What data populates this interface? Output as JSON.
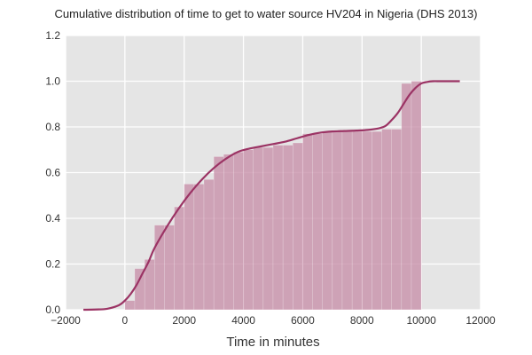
{
  "chart_data": {
    "type": "bar",
    "title": "Cumulative distribution of time to get to water source HV204 in Nigeria (DHS 2013)",
    "xlabel": "Time in minutes",
    "ylabel": "",
    "xlim": [
      -2000,
      12000
    ],
    "ylim": [
      0,
      1.2
    ],
    "xticks": [
      -2000,
      0,
      2000,
      4000,
      6000,
      8000,
      10000,
      12000
    ],
    "yticks": [
      0.0,
      0.2,
      0.4,
      0.6,
      0.8,
      1.0,
      1.2
    ],
    "xtick_labels": [
      "−2000",
      "0",
      "2000",
      "4000",
      "6000",
      "8000",
      "10000",
      "12000"
    ],
    "ytick_labels": [
      "0.0",
      "0.2",
      "0.4",
      "0.6",
      "0.8",
      "1.0",
      "1.2"
    ],
    "grid": true,
    "legend": "none",
    "series": [
      {
        "kind": "histogram",
        "color": "#c88fa9",
        "bin_edges": [
          0,
          333,
          667,
          1000,
          1333,
          1667,
          2000,
          2333,
          2667,
          3000,
          3333,
          3667,
          4000,
          4333,
          4667,
          5000,
          5333,
          5667,
          6000,
          6333,
          6667,
          7000,
          7333,
          7667,
          8000,
          8333,
          8667,
          9000,
          9333,
          9667,
          10000
        ],
        "values": [
          0.04,
          0.18,
          0.22,
          0.37,
          0.37,
          0.45,
          0.55,
          0.55,
          0.57,
          0.67,
          0.68,
          0.69,
          0.7,
          0.71,
          0.71,
          0.72,
          0.72,
          0.73,
          0.77,
          0.77,
          0.78,
          0.78,
          0.78,
          0.78,
          0.78,
          0.78,
          0.79,
          0.79,
          0.99,
          1.0
        ]
      },
      {
        "kind": "kde-cumulative-line",
        "color": "#9b3364",
        "x": [
          -1400,
          -1000,
          -600,
          -200,
          0,
          200,
          400,
          600,
          800,
          1000,
          1400,
          1800,
          2200,
          2600,
          3000,
          3400,
          3800,
          4200,
          4600,
          5000,
          5400,
          5800,
          6200,
          6600,
          7000,
          7400,
          7800,
          8200,
          8600,
          8800,
          9000,
          9200,
          9400,
          9600,
          9800,
          10000,
          10200,
          10400,
          10600,
          10800,
          11000,
          11300
        ],
        "y": [
          0.0,
          0.001,
          0.004,
          0.02,
          0.04,
          0.07,
          0.11,
          0.16,
          0.21,
          0.27,
          0.36,
          0.44,
          0.51,
          0.57,
          0.62,
          0.66,
          0.69,
          0.705,
          0.715,
          0.725,
          0.735,
          0.75,
          0.765,
          0.775,
          0.78,
          0.782,
          0.784,
          0.787,
          0.795,
          0.805,
          0.83,
          0.86,
          0.9,
          0.94,
          0.97,
          0.99,
          0.997,
          1.0,
          1.0,
          1.0,
          1.0,
          1.0
        ]
      }
    ]
  }
}
